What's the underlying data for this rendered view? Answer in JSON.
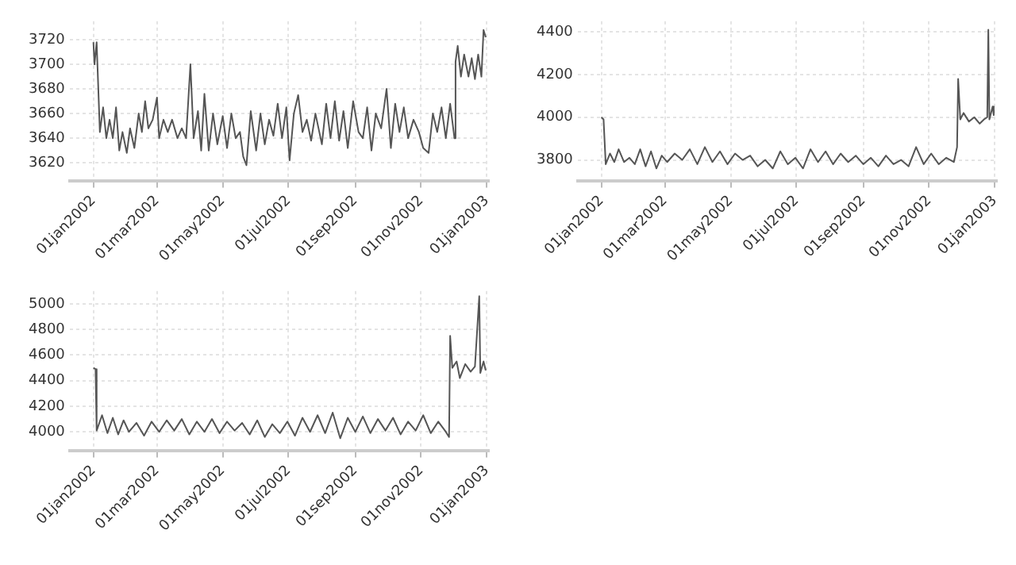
{
  "chart_data": [
    {
      "type": "line",
      "grid": true,
      "legend": false,
      "marker": "none",
      "line_style": "solid",
      "xlim": [
        "2001-12-10",
        "2003-01-03"
      ],
      "ylim": [
        3605,
        3735
      ],
      "yticks": [
        3620,
        3640,
        3660,
        3680,
        3700,
        3720
      ],
      "xticks": [
        {
          "value": "2002-01-01",
          "label": "01jan2002"
        },
        {
          "value": "2002-03-01",
          "label": "01mar2002"
        },
        {
          "value": "2002-05-01",
          "label": "01may2002"
        },
        {
          "value": "2002-07-01",
          "label": "01jul2002"
        },
        {
          "value": "2002-09-01",
          "label": "01sep2002"
        },
        {
          "value": "2002-11-01",
          "label": "01nov2002"
        },
        {
          "value": "2003-01-01",
          "label": "01jan2003"
        }
      ],
      "x": [
        "2002-01-01",
        "2002-01-02",
        "2002-01-04",
        "2002-01-07",
        "2002-01-10",
        "2002-01-13",
        "2002-01-16",
        "2002-01-19",
        "2002-01-22",
        "2002-01-25",
        "2002-01-28",
        "2002-02-01",
        "2002-02-04",
        "2002-02-08",
        "2002-02-12",
        "2002-02-15",
        "2002-02-18",
        "2002-02-21",
        "2002-02-25",
        "2002-03-01",
        "2002-03-03",
        "2002-03-07",
        "2002-03-11",
        "2002-03-15",
        "2002-03-20",
        "2002-03-24",
        "2002-03-28",
        "2002-04-01",
        "2002-04-04",
        "2002-04-08",
        "2002-04-11",
        "2002-04-14",
        "2002-04-18",
        "2002-04-22",
        "2002-04-26",
        "2002-05-01",
        "2002-05-05",
        "2002-05-09",
        "2002-05-13",
        "2002-05-17",
        "2002-05-20",
        "2002-05-23",
        "2002-05-27",
        "2002-06-01",
        "2002-06-05",
        "2002-06-09",
        "2002-06-13",
        "2002-06-17",
        "2002-06-21",
        "2002-06-25",
        "2002-06-29",
        "2002-07-02",
        "2002-07-06",
        "2002-07-10",
        "2002-07-14",
        "2002-07-18",
        "2002-07-22",
        "2002-07-26",
        "2002-08-01",
        "2002-08-05",
        "2002-08-09",
        "2002-08-13",
        "2002-08-17",
        "2002-08-21",
        "2002-08-25",
        "2002-08-30",
        "2002-09-04",
        "2002-09-08",
        "2002-09-12",
        "2002-09-16",
        "2002-09-20",
        "2002-09-25",
        "2002-09-30",
        "2002-10-04",
        "2002-10-08",
        "2002-10-12",
        "2002-10-16",
        "2002-10-20",
        "2002-10-25",
        "2002-10-30",
        "2002-11-03",
        "2002-11-08",
        "2002-11-12",
        "2002-11-16",
        "2002-11-20",
        "2002-11-24",
        "2002-11-28",
        "2002-12-02",
        "2002-12-03",
        "2002-12-05",
        "2002-12-08",
        "2002-12-11",
        "2002-12-15",
        "2002-12-18",
        "2002-12-21",
        "2002-12-24",
        "2002-12-27",
        "2002-12-29",
        "2002-12-31"
      ],
      "series": [
        {
          "color": "#555555",
          "values": [
            3718,
            3700,
            3718,
            3645,
            3665,
            3640,
            3655,
            3640,
            3665,
            3630,
            3645,
            3628,
            3648,
            3632,
            3660,
            3645,
            3670,
            3648,
            3655,
            3673,
            3640,
            3655,
            3645,
            3655,
            3640,
            3648,
            3640,
            3700,
            3640,
            3662,
            3630,
            3676,
            3630,
            3660,
            3635,
            3658,
            3632,
            3660,
            3640,
            3645,
            3625,
            3618,
            3662,
            3630,
            3660,
            3635,
            3655,
            3642,
            3668,
            3640,
            3665,
            3622,
            3660,
            3675,
            3645,
            3655,
            3638,
            3660,
            3635,
            3668,
            3640,
            3670,
            3638,
            3662,
            3632,
            3670,
            3645,
            3640,
            3665,
            3630,
            3660,
            3648,
            3680,
            3632,
            3668,
            3645,
            3665,
            3640,
            3655,
            3645,
            3632,
            3628,
            3660,
            3645,
            3665,
            3640,
            3668,
            3640,
            3702,
            3715,
            3690,
            3708,
            3690,
            3705,
            3688,
            3708,
            3690,
            3728,
            3722
          ]
        }
      ]
    },
    {
      "type": "line",
      "grid": true,
      "legend": false,
      "marker": "none",
      "line_style": "solid",
      "xlim": [
        "2001-12-10",
        "2003-01-03"
      ],
      "ylim": [
        3700,
        4450
      ],
      "yticks": [
        3800,
        4000,
        4200,
        4400
      ],
      "xticks": [
        {
          "value": "2002-01-01",
          "label": "01jan2002"
        },
        {
          "value": "2002-03-01",
          "label": "01mar2002"
        },
        {
          "value": "2002-05-01",
          "label": "01may2002"
        },
        {
          "value": "2002-07-01",
          "label": "01jul2002"
        },
        {
          "value": "2002-09-01",
          "label": "01sep2002"
        },
        {
          "value": "2002-11-01",
          "label": "01nov2002"
        },
        {
          "value": "2003-01-01",
          "label": "01jan2003"
        }
      ],
      "x": [
        "2002-01-01",
        "2002-01-03",
        "2002-01-05",
        "2002-01-09",
        "2002-01-13",
        "2002-01-17",
        "2002-01-22",
        "2002-01-27",
        "2002-02-01",
        "2002-02-06",
        "2002-02-11",
        "2002-02-16",
        "2002-02-21",
        "2002-02-26",
        "2002-03-03",
        "2002-03-10",
        "2002-03-17",
        "2002-03-24",
        "2002-03-31",
        "2002-04-07",
        "2002-04-14",
        "2002-04-21",
        "2002-04-28",
        "2002-05-05",
        "2002-05-12",
        "2002-05-19",
        "2002-05-26",
        "2002-06-02",
        "2002-06-09",
        "2002-06-16",
        "2002-06-23",
        "2002-06-30",
        "2002-07-07",
        "2002-07-14",
        "2002-07-21",
        "2002-07-28",
        "2002-08-04",
        "2002-08-11",
        "2002-08-18",
        "2002-08-25",
        "2002-09-01",
        "2002-09-08",
        "2002-09-15",
        "2002-09-22",
        "2002-09-29",
        "2002-10-06",
        "2002-10-13",
        "2002-10-20",
        "2002-10-27",
        "2002-11-03",
        "2002-11-10",
        "2002-11-17",
        "2002-11-24",
        "2002-11-27",
        "2002-11-28",
        "2002-11-30",
        "2002-12-03",
        "2002-12-08",
        "2002-12-13",
        "2002-12-18",
        "2002-12-22",
        "2002-12-25",
        "2002-12-26",
        "2002-12-27",
        "2002-12-30",
        "2002-12-31"
      ],
      "series": [
        {
          "color": "#555555",
          "values": [
            4000,
            3990,
            3780,
            3830,
            3790,
            3850,
            3790,
            3810,
            3780,
            3850,
            3770,
            3840,
            3760,
            3820,
            3790,
            3830,
            3800,
            3850,
            3780,
            3860,
            3790,
            3840,
            3780,
            3830,
            3800,
            3820,
            3770,
            3800,
            3760,
            3840,
            3780,
            3810,
            3760,
            3850,
            3790,
            3840,
            3780,
            3830,
            3790,
            3820,
            3780,
            3810,
            3770,
            3820,
            3780,
            3800,
            3770,
            3860,
            3780,
            3830,
            3780,
            3810,
            3790,
            3860,
            4180,
            3990,
            4020,
            3980,
            4000,
            3970,
            3990,
            4000,
            4410,
            3990,
            4050,
            4010
          ]
        }
      ]
    },
    {
      "type": "line",
      "grid": true,
      "legend": false,
      "marker": "none",
      "line_style": "solid",
      "xlim": [
        "2001-12-10",
        "2003-01-03"
      ],
      "ylim": [
        3850,
        5100
      ],
      "yticks": [
        4000,
        4200,
        4400,
        4600,
        4800,
        5000
      ],
      "xticks": [
        {
          "value": "2002-01-01",
          "label": "01jan2002"
        },
        {
          "value": "2002-03-01",
          "label": "01mar2002"
        },
        {
          "value": "2002-05-01",
          "label": "01may2002"
        },
        {
          "value": "2002-07-01",
          "label": "01jul2002"
        },
        {
          "value": "2002-09-01",
          "label": "01sep2002"
        },
        {
          "value": "2002-11-01",
          "label": "01nov2002"
        },
        {
          "value": "2003-01-01",
          "label": "01jan2003"
        }
      ],
      "x": [
        "2002-01-01",
        "2002-01-03",
        "2002-01-04",
        "2002-01-09",
        "2002-01-14",
        "2002-01-19",
        "2002-01-24",
        "2002-01-29",
        "2002-02-03",
        "2002-02-10",
        "2002-02-17",
        "2002-02-24",
        "2002-03-03",
        "2002-03-10",
        "2002-03-17",
        "2002-03-24",
        "2002-03-31",
        "2002-04-07",
        "2002-04-14",
        "2002-04-21",
        "2002-04-28",
        "2002-05-05",
        "2002-05-12",
        "2002-05-19",
        "2002-05-26",
        "2002-06-02",
        "2002-06-09",
        "2002-06-16",
        "2002-06-23",
        "2002-06-30",
        "2002-07-07",
        "2002-07-14",
        "2002-07-21",
        "2002-07-28",
        "2002-08-04",
        "2002-08-11",
        "2002-08-18",
        "2002-08-25",
        "2002-09-01",
        "2002-09-08",
        "2002-09-15",
        "2002-09-22",
        "2002-09-29",
        "2002-10-06",
        "2002-10-13",
        "2002-10-20",
        "2002-10-27",
        "2002-11-03",
        "2002-11-10",
        "2002-11-17",
        "2002-11-24",
        "2002-11-27",
        "2002-11-28",
        "2002-11-30",
        "2002-12-04",
        "2002-12-07",
        "2002-12-12",
        "2002-12-17",
        "2002-12-21",
        "2002-12-25",
        "2002-12-26",
        "2002-12-29",
        "2002-12-31"
      ],
      "series": [
        {
          "color": "#555555",
          "values": [
            4500,
            4490,
            4010,
            4130,
            3990,
            4110,
            3980,
            4090,
            4000,
            4070,
            3970,
            4080,
            4000,
            4090,
            4010,
            4100,
            3980,
            4080,
            4000,
            4100,
            3990,
            4080,
            4010,
            4070,
            3980,
            4090,
            3960,
            4060,
            3990,
            4080,
            3970,
            4110,
            4000,
            4130,
            3990,
            4150,
            3950,
            4110,
            4000,
            4120,
            3990,
            4100,
            4010,
            4110,
            3980,
            4080,
            4010,
            4130,
            3990,
            4080,
            4000,
            3960,
            4750,
            4500,
            4550,
            4420,
            4530,
            4470,
            4510,
            5060,
            4460,
            4550,
            4480
          ]
        }
      ]
    }
  ]
}
